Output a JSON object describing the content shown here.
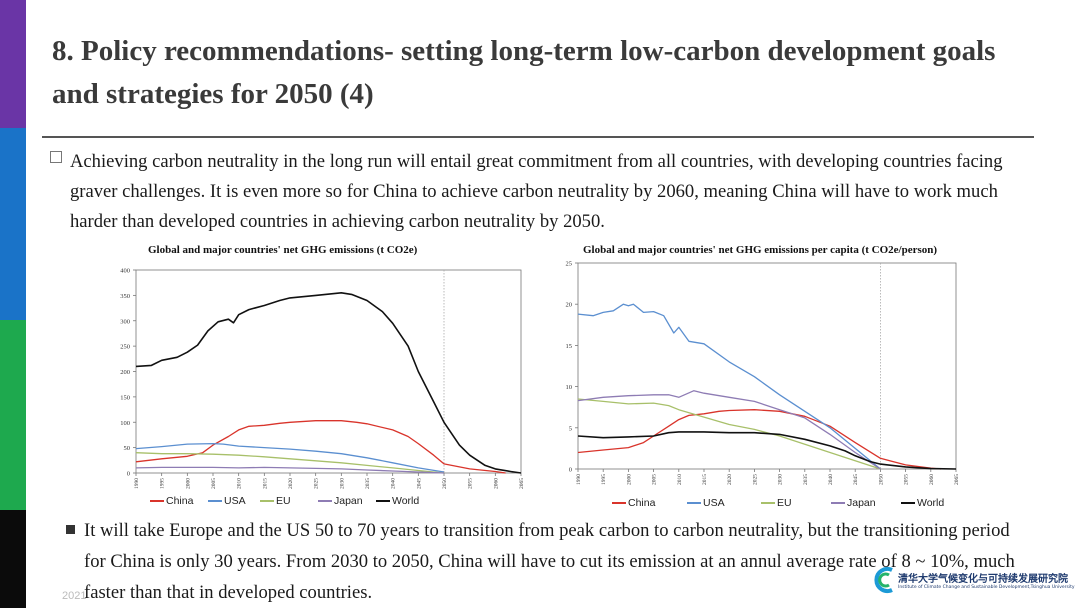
{
  "slide": {
    "title": "8. Policy recommendations- setting long-term low-carbon development goals and strategies for 2050 (4)",
    "paragraph1": "Achieving carbon neutrality in the long run will entail great commitment from all countries, with developing countries facing graver challenges. It is even more so for China to achieve carbon neutrality by 2060, meaning China will have to work much harder than developed countries in achieving carbon neutrality by 2050.",
    "paragraph2": "It will take Europe and the US 50 to 70 years to transition from peak carbon to carbon neutrality, but the transitioning period for China is only 30 years. From 2030 to 2050, China will have to cut its emission at an annul average rate of 8 ~ 10%, much faster than that in developed countries.",
    "footer_date": "2021",
    "logo_text_cn": "清华大学气候变化与可持续发展研究院",
    "logo_text_en": "Institute of Climate Change and Sustainable Development,Tsinghua University"
  },
  "colors": {
    "China": "#d9342b",
    "USA": "#5b8fd0",
    "EU": "#a8c06a",
    "Japan": "#8e7cb4",
    "World": "#111111"
  },
  "chart_data": [
    {
      "type": "line",
      "title": "Global and major  countries' net GHG emissions (t CO2e)",
      "xlabel": "",
      "ylabel": "",
      "ylim": [
        0,
        400
      ],
      "yticks": [
        "0",
        "50",
        "100",
        "150",
        "200",
        "250",
        "300",
        "350",
        "400"
      ],
      "xlim": [
        1990,
        2065
      ],
      "xticks": [
        "1990",
        "1995",
        "2000",
        "2005",
        "2010",
        "2015",
        "2020",
        "2025",
        "2030",
        "2035",
        "2040",
        "2045",
        "2050",
        "2055",
        "2060",
        "2065"
      ],
      "vline_x": 2050,
      "legend": [
        "China",
        "USA",
        "EU",
        "Japan",
        "World"
      ],
      "legend_position": "bottom",
      "series": [
        {
          "name": "China",
          "x": [
            1990,
            1995,
            2000,
            2003,
            2005,
            2008,
            2010,
            2012,
            2015,
            2018,
            2020,
            2025,
            2030,
            2033,
            2035,
            2040,
            2043,
            2045,
            2048,
            2050,
            2055,
            2060,
            2062
          ],
          "y": [
            22,
            28,
            33,
            40,
            55,
            72,
            85,
            92,
            94,
            98,
            100,
            103,
            103,
            100,
            97,
            85,
            72,
            58,
            35,
            18,
            8,
            3,
            0
          ]
        },
        {
          "name": "USA",
          "x": [
            1990,
            1995,
            2000,
            2005,
            2007,
            2010,
            2015,
            2020,
            2025,
            2030,
            2035,
            2040,
            2045,
            2050
          ],
          "y": [
            48,
            52,
            57,
            58,
            57,
            53,
            50,
            47,
            43,
            38,
            30,
            20,
            10,
            2
          ]
        },
        {
          "name": "EU",
          "x": [
            1990,
            1995,
            2000,
            2005,
            2010,
            2015,
            2020,
            2025,
            2030,
            2035,
            2040,
            2045,
            2050
          ],
          "y": [
            40,
            38,
            38,
            37,
            35,
            32,
            28,
            24,
            20,
            15,
            10,
            5,
            0
          ]
        },
        {
          "name": "Japan",
          "x": [
            1990,
            1995,
            2000,
            2005,
            2010,
            2015,
            2020,
            2025,
            2030,
            2035,
            2040,
            2045,
            2050
          ],
          "y": [
            10,
            11,
            11,
            11,
            10,
            11,
            10,
            9,
            8,
            6,
            4,
            2,
            0
          ]
        },
        {
          "name": "World",
          "x": [
            1990,
            1993,
            1995,
            1998,
            2000,
            2002,
            2004,
            2006,
            2008,
            2009,
            2010,
            2012,
            2015,
            2018,
            2020,
            2025,
            2030,
            2032,
            2035,
            2038,
            2040,
            2043,
            2045,
            2048,
            2050,
            2053,
            2055,
            2058,
            2060,
            2063,
            2065
          ],
          "y": [
            210,
            212,
            222,
            228,
            238,
            252,
            280,
            298,
            303,
            296,
            312,
            322,
            330,
            340,
            345,
            350,
            355,
            352,
            340,
            318,
            295,
            250,
            200,
            140,
            100,
            55,
            35,
            15,
            8,
            3,
            0
          ]
        }
      ]
    },
    {
      "type": "line",
      "title": "Global and major  countries' net GHG emissions per capita (t CO2e/person)",
      "xlabel": "",
      "ylabel": "",
      "ylim": [
        0,
        25
      ],
      "yticks": [
        "0",
        "5",
        "10",
        "15",
        "20",
        "25"
      ],
      "xlim": [
        1990,
        2065
      ],
      "xticks": [
        "1990",
        "1995",
        "2000",
        "2005",
        "2010",
        "2015",
        "2020",
        "2025",
        "2030",
        "2035",
        "2040",
        "2045",
        "2050",
        "2055",
        "2060",
        "2065"
      ],
      "vline_x": 2050,
      "legend": [
        "China",
        "USA",
        "EU",
        "Japan",
        "World"
      ],
      "legend_position": "bottom",
      "series": [
        {
          "name": "China",
          "x": [
            1990,
            1995,
            2000,
            2003,
            2005,
            2008,
            2010,
            2012,
            2015,
            2018,
            2020,
            2025,
            2030,
            2035,
            2040,
            2045,
            2050,
            2055,
            2060,
            2062
          ],
          "y": [
            2,
            2.3,
            2.6,
            3.2,
            4,
            5.2,
            6,
            6.5,
            6.7,
            7,
            7.1,
            7.2,
            7,
            6.4,
            5.2,
            3.2,
            1.3,
            0.5,
            0.1,
            0
          ]
        },
        {
          "name": "USA",
          "x": [
            1990,
            1993,
            1995,
            1997,
            1999,
            2000,
            2001,
            2003,
            2005,
            2007,
            2009,
            2010,
            2012,
            2015,
            2020,
            2025,
            2030,
            2035,
            2040,
            2045,
            2050
          ],
          "y": [
            18.8,
            18.6,
            19,
            19.2,
            20,
            19.8,
            20,
            19,
            19.1,
            18.6,
            16.5,
            17.2,
            15.5,
            15.2,
            13,
            11.2,
            9,
            7,
            5,
            2.5,
            0
          ]
        },
        {
          "name": "EU",
          "x": [
            1990,
            1995,
            2000,
            2005,
            2008,
            2010,
            2015,
            2020,
            2025,
            2030,
            2035,
            2040,
            2045,
            2050
          ],
          "y": [
            8.5,
            8.2,
            7.9,
            8,
            7.7,
            7.2,
            6.3,
            5.4,
            4.8,
            4,
            3,
            2,
            1,
            0
          ]
        },
        {
          "name": "Japan",
          "x": [
            1990,
            1995,
            2000,
            2005,
            2008,
            2010,
            2013,
            2015,
            2020,
            2025,
            2030,
            2035,
            2040,
            2045,
            2050
          ],
          "y": [
            8.3,
            8.7,
            8.9,
            9,
            9,
            8.7,
            9.5,
            9.2,
            8.7,
            8.2,
            7.2,
            6.2,
            4.2,
            2,
            0
          ]
        },
        {
          "name": "World",
          "x": [
            1990,
            1995,
            2000,
            2005,
            2008,
            2010,
            2015,
            2020,
            2025,
            2030,
            2035,
            2040,
            2043,
            2045,
            2048,
            2050,
            2055,
            2060,
            2065
          ],
          "y": [
            4,
            3.8,
            3.9,
            4,
            4.4,
            4.5,
            4.5,
            4.4,
            4.4,
            4.2,
            3.6,
            2.8,
            2.2,
            1.6,
            0.9,
            0.6,
            0.25,
            0.05,
            0
          ]
        }
      ]
    }
  ]
}
